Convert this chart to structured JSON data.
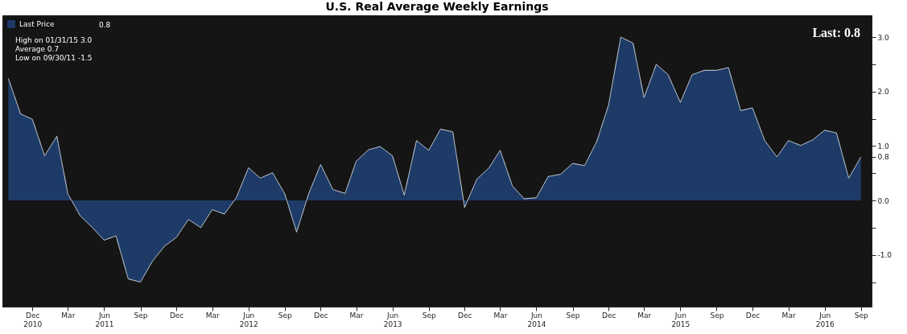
{
  "chart_data": {
    "type": "area",
    "title": "U.S. Real Average Weekly Earnings",
    "x": [
      "2010-10",
      "2010-11",
      "2010-12",
      "2011-01",
      "2011-02",
      "2011-03",
      "2011-04",
      "2011-05",
      "2011-06",
      "2011-07",
      "2011-08",
      "2011-09",
      "2011-10",
      "2011-11",
      "2011-12",
      "2012-01",
      "2012-02",
      "2012-03",
      "2012-04",
      "2012-05",
      "2012-06",
      "2012-07",
      "2012-08",
      "2012-09",
      "2012-10",
      "2012-11",
      "2012-12",
      "2013-01",
      "2013-02",
      "2013-03",
      "2013-04",
      "2013-05",
      "2013-06",
      "2013-07",
      "2013-08",
      "2013-09",
      "2013-10",
      "2013-11",
      "2013-12",
      "2014-01",
      "2014-02",
      "2014-03",
      "2014-04",
      "2014-05",
      "2014-06",
      "2014-07",
      "2014-08",
      "2014-09",
      "2014-10",
      "2014-11",
      "2014-12",
      "2015-01",
      "2015-02",
      "2015-03",
      "2015-04",
      "2015-05",
      "2015-06",
      "2015-07",
      "2015-08",
      "2015-09",
      "2015-10",
      "2015-11",
      "2015-12",
      "2016-01",
      "2016-02",
      "2016-03",
      "2016-04",
      "2016-05",
      "2016-06",
      "2016-07",
      "2016-08",
      "2016-09"
    ],
    "series": [
      {
        "name": "Last Price",
        "color": "#1d3b66",
        "values": [
          2.24,
          1.59,
          1.49,
          0.82,
          1.18,
          0.12,
          -0.28,
          -0.49,
          -0.73,
          -0.65,
          -1.44,
          -1.5,
          -1.12,
          -0.84,
          -0.68,
          -0.35,
          -0.5,
          -0.17,
          -0.25,
          0.05,
          0.6,
          0.41,
          0.51,
          0.12,
          -0.58,
          0.13,
          0.66,
          0.2,
          0.13,
          0.72,
          0.93,
          0.99,
          0.82,
          0.1,
          1.1,
          0.92,
          1.31,
          1.26,
          -0.13,
          0.39,
          0.6,
          0.92,
          0.27,
          0.03,
          0.05,
          0.44,
          0.48,
          0.68,
          0.64,
          1.08,
          1.75,
          3.0,
          2.89,
          1.89,
          2.5,
          2.31,
          1.8,
          2.31,
          2.39,
          2.39,
          2.44,
          1.65,
          1.7,
          1.1,
          0.8,
          1.1,
          1.01,
          1.11,
          1.29,
          1.24,
          0.41,
          0.8
        ]
      }
    ],
    "xlim": [
      "2010-09-16",
      "2016-09-28"
    ],
    "xticks": [
      {
        "value": "2010-12",
        "label": "Dec\n2010"
      },
      {
        "value": "2011-03",
        "label": "Mar"
      },
      {
        "value": "2011-06",
        "label": "Jun\n2011"
      },
      {
        "value": "2011-09",
        "label": "Sep"
      },
      {
        "value": "2011-12",
        "label": "Dec"
      },
      {
        "value": "2012-03",
        "label": "Mar"
      },
      {
        "value": "2012-06",
        "label": "Jun\n2012"
      },
      {
        "value": "2012-09",
        "label": "Sep"
      },
      {
        "value": "2012-12",
        "label": "Dec"
      },
      {
        "value": "2013-03",
        "label": "Mar"
      },
      {
        "value": "2013-06",
        "label": "Jun\n2013"
      },
      {
        "value": "2013-09",
        "label": "Sep"
      },
      {
        "value": "2013-12",
        "label": "Dec"
      },
      {
        "value": "2014-03",
        "label": "Mar"
      },
      {
        "value": "2014-06",
        "label": "Jun\n2014"
      },
      {
        "value": "2014-09",
        "label": "Sep"
      },
      {
        "value": "2014-12",
        "label": "Dec"
      },
      {
        "value": "2015-03",
        "label": "Mar"
      },
      {
        "value": "2015-06",
        "label": "Jun\n2015"
      },
      {
        "value": "2015-09",
        "label": "Sep"
      },
      {
        "value": "2015-12",
        "label": "Dec"
      },
      {
        "value": "2016-03",
        "label": "Mar"
      },
      {
        "value": "2016-06",
        "label": "Jun\n2016"
      },
      {
        "value": "2016-09",
        "label": "Sep"
      }
    ],
    "ylim": [
      -1.95,
      3.4
    ],
    "yticks": [
      {
        "value": -1.5,
        "label": null
      },
      {
        "value": -1,
        "label": "-1.0"
      },
      {
        "value": -0.5,
        "label": null
      },
      {
        "value": 0,
        "label": "0.0"
      },
      {
        "value": 0.5,
        "label": null
      },
      {
        "value": 0.8,
        "label": "0.8"
      },
      {
        "value": 1,
        "label": "1.0"
      },
      {
        "value": 1.5,
        "label": null
      },
      {
        "value": 2,
        "label": "2.0"
      },
      {
        "value": 2.5,
        "label": null
      },
      {
        "value": 3,
        "label": "3.0"
      }
    ],
    "annotations": [
      "0.8",
      "High on 01/31/15  3.0",
      "Average  0.7",
      "Low on 09/30/11  -1.5",
      "Last: 0.8"
    ],
    "legend": "top left",
    "grid": false,
    "marker": "none",
    "line_style": "solid"
  }
}
